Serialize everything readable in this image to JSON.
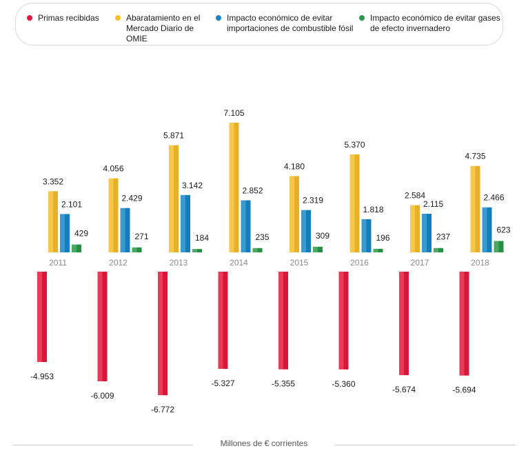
{
  "colors": {
    "primas": "#e8183b",
    "omie": "#f7bd2a",
    "combustible": "#1687c9",
    "gases": "#2a9a48"
  },
  "legend": [
    {
      "label": "Primas recibidas",
      "color": "#e8183b"
    },
    {
      "label": "Abaratamiento en el Mercado Diario de OMIE",
      "color": "#f7bd2a"
    },
    {
      "label": "Impacto económico de evitar importaciones de combustible fósil",
      "color": "#1687c9"
    },
    {
      "label": "Impacto económico de evitar gases de efecto invernadero",
      "color": "#2a9a48"
    }
  ],
  "footer": "Millones de € corrientes",
  "chart_data": {
    "type": "bar",
    "categories": [
      "2011",
      "2012",
      "2013",
      "2014",
      "2015",
      "2016",
      "2017",
      "2018"
    ],
    "series": [
      {
        "name": "Primas recibidas",
        "values": [
          -4953,
          -6009,
          -6772,
          -5327,
          -5355,
          -5360,
          -5674,
          -5694
        ],
        "labels": [
          "-4.953",
          "-6.009",
          "-6.772",
          "-5.327",
          "-5.355",
          "-5.360",
          "-5.674",
          "-5.694"
        ]
      },
      {
        "name": "Abaratamiento en el Mercado Diario de OMIE",
        "values": [
          3352,
          4056,
          5871,
          7105,
          4180,
          5370,
          2584,
          4735
        ],
        "labels": [
          "3.352",
          "4.056",
          "5.871",
          "7.105",
          "4.180",
          "5.370",
          "2.584",
          "4.735"
        ]
      },
      {
        "name": "Impacto económico de evitar importaciones de combustible fósil",
        "values": [
          2101,
          2429,
          3142,
          2852,
          2319,
          1818,
          2115,
          2466
        ],
        "labels": [
          "2.101",
          "2.429",
          "3.142",
          "2.852",
          "2.319",
          "1.818",
          "2.115",
          "2.466"
        ]
      },
      {
        "name": "Impacto económico de evitar gases de efecto invernadero",
        "values": [
          429,
          271,
          184,
          235,
          309,
          196,
          237,
          623
        ],
        "labels": [
          "429",
          "271",
          "184",
          "235",
          "309",
          "196",
          "237",
          "623"
        ]
      }
    ],
    "ylabel": "Millones de € corrientes",
    "grid": false,
    "legend_position": "top"
  }
}
